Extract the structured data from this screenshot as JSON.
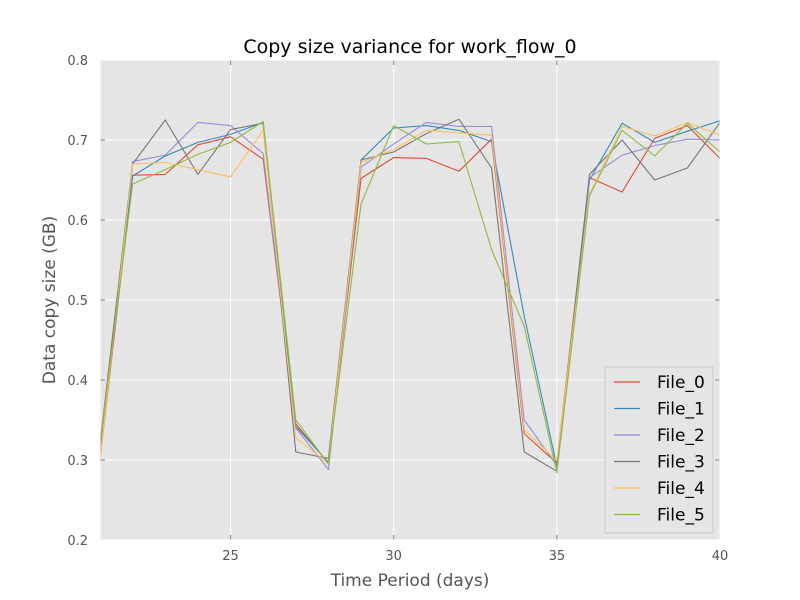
{
  "chart_data": {
    "type": "line",
    "title": "Copy size variance for work_flow_0",
    "xlabel": "Time Period (days)",
    "ylabel": "Data copy size (GB)",
    "xlim": [
      21,
      40
    ],
    "ylim": [
      0.2,
      0.8
    ],
    "xticks": [
      25,
      30,
      35,
      40
    ],
    "yticks": [
      0.2,
      0.3,
      0.4,
      0.5,
      0.6,
      0.7,
      0.8
    ],
    "xtick_labels": [
      "25",
      "30",
      "35",
      "40"
    ],
    "ytick_labels": [
      "0.2",
      "0.3",
      "0.4",
      "0.5",
      "0.6",
      "0.7",
      "0.8"
    ],
    "grid": true,
    "legend_position": "lower-right",
    "background": "#e5e5e5",
    "x": [
      21,
      22,
      23,
      24,
      25,
      26,
      27,
      28,
      29,
      30,
      31,
      32,
      33,
      34,
      35,
      36,
      37,
      38,
      39,
      40
    ],
    "series": [
      {
        "name": "File_0",
        "color": "#e24a33",
        "values": [
          0.3,
          0.656,
          0.657,
          0.694,
          0.704,
          0.676,
          0.345,
          0.296,
          0.652,
          0.678,
          0.677,
          0.661,
          0.701,
          0.333,
          0.296,
          0.653,
          0.635,
          0.702,
          0.718,
          0.677
        ]
      },
      {
        "name": "File_1",
        "color": "#348abd",
        "values": [
          0.31,
          0.655,
          0.68,
          0.697,
          0.707,
          0.722,
          0.342,
          0.297,
          0.675,
          0.715,
          0.718,
          0.712,
          0.698,
          0.48,
          0.292,
          0.65,
          0.721,
          0.697,
          0.711,
          0.724
        ]
      },
      {
        "name": "File_2",
        "color": "#988ed5",
        "values": [
          0.31,
          0.673,
          0.681,
          0.722,
          0.718,
          0.683,
          0.34,
          0.288,
          0.666,
          0.695,
          0.722,
          0.717,
          0.717,
          0.35,
          0.293,
          0.653,
          0.681,
          0.693,
          0.701,
          0.7
        ]
      },
      {
        "name": "File_3",
        "color": "#777777",
        "values": [
          0.32,
          0.67,
          0.725,
          0.657,
          0.713,
          0.721,
          0.31,
          0.302,
          0.675,
          0.685,
          0.708,
          0.726,
          0.665,
          0.31,
          0.286,
          0.657,
          0.7,
          0.65,
          0.665,
          0.722
        ]
      },
      {
        "name": "File_4",
        "color": "#fbc15e",
        "values": [
          0.3,
          0.67,
          0.672,
          0.663,
          0.654,
          0.712,
          0.328,
          0.295,
          0.672,
          0.688,
          0.712,
          0.709,
          0.706,
          0.338,
          0.299,
          0.632,
          0.717,
          0.705,
          0.722,
          0.706
        ]
      },
      {
        "name": "File_5",
        "color": "#8eba42",
        "values": [
          0.32,
          0.645,
          0.663,
          0.682,
          0.697,
          0.723,
          0.35,
          0.295,
          0.62,
          0.718,
          0.695,
          0.698,
          0.563,
          0.467,
          0.284,
          0.63,
          0.712,
          0.68,
          0.721,
          0.685
        ]
      }
    ]
  }
}
